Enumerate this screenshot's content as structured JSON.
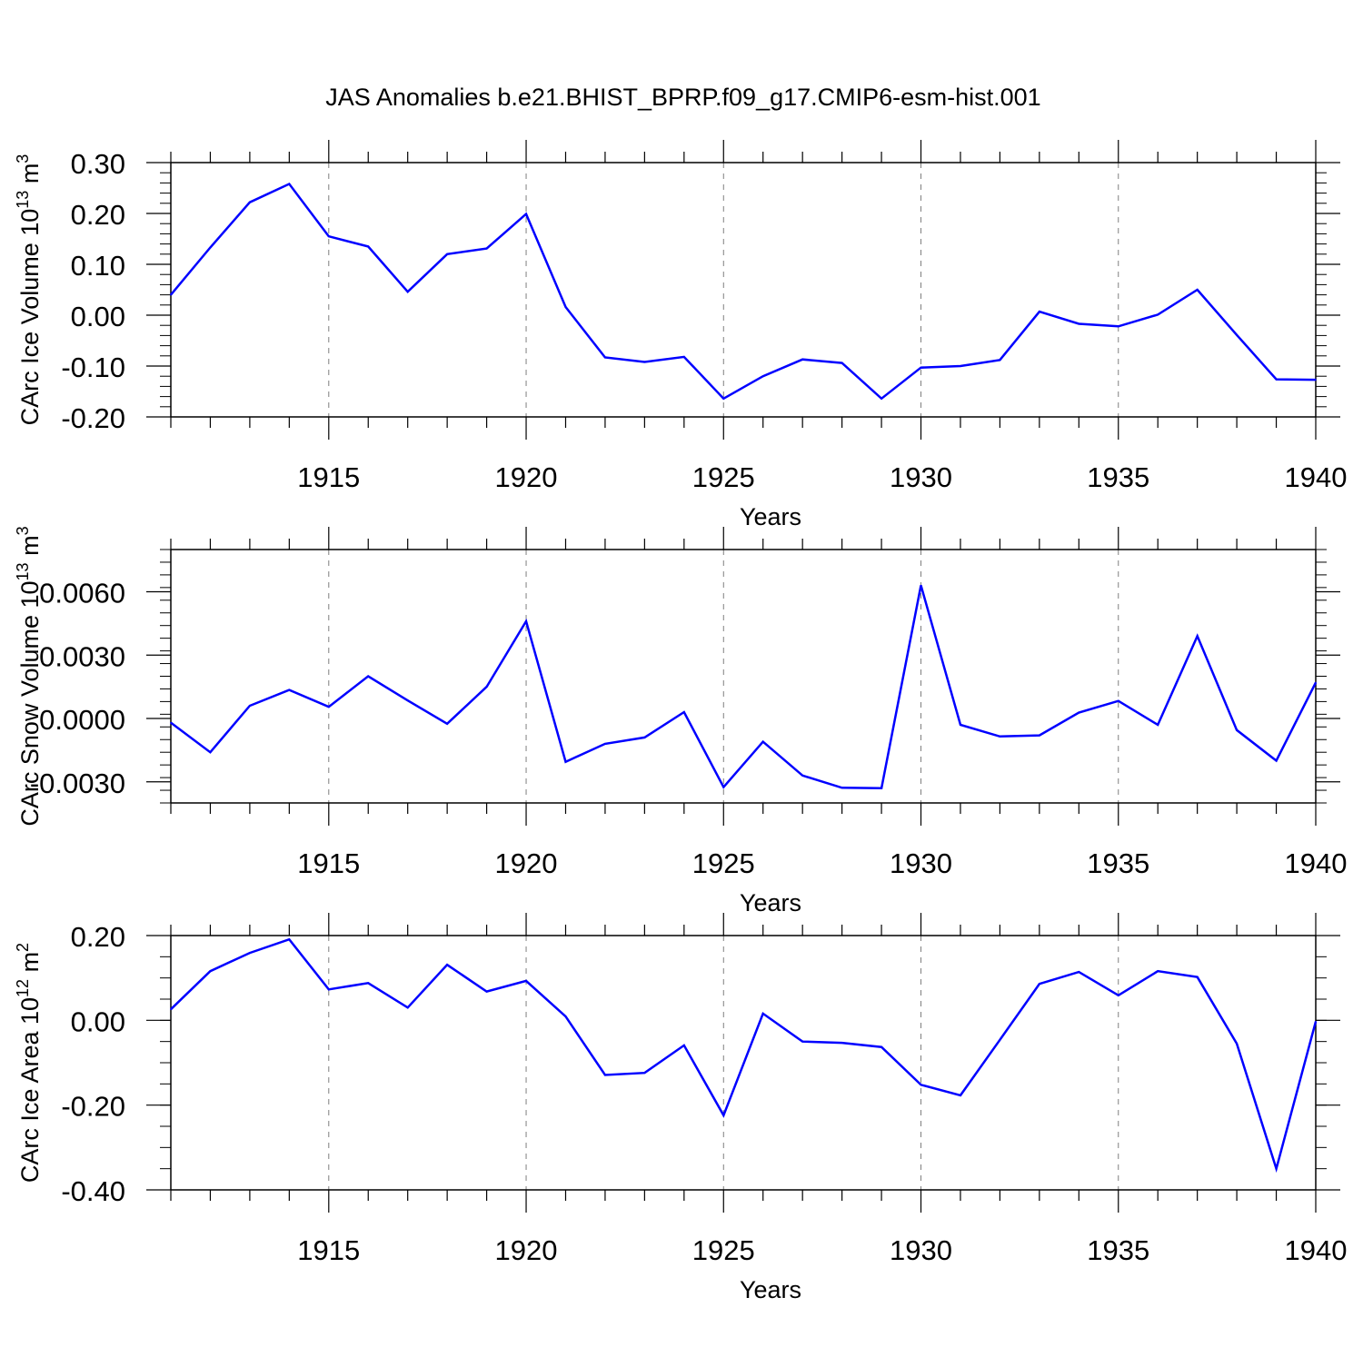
{
  "title": "JAS Anomalies b.e21.BHIST_BPRP.f09_g17.CMIP6-esm-hist.001",
  "colors": {
    "line": "#0000ff",
    "axis": "#000000",
    "grid": "#7f7f7f"
  },
  "chart_data": [
    {
      "type": "line",
      "title": "JAS Anomalies b.e21.BHIST_BPRP.f09_g17.CMIP6-esm-hist.001",
      "ylabel_main": "CArc Ice Volume 10",
      "ylabel_sup": "13",
      "ylabel_tail": " m",
      "ylabel_sup2": "3",
      "xlabel": "Years",
      "xlim": [
        1911,
        1940
      ],
      "ylim": [
        -0.2,
        0.3
      ],
      "yticks": [
        -0.2,
        -0.1,
        0.0,
        0.1,
        0.2,
        0.3
      ],
      "ytick_labels": [
        "-0.20",
        "-0.10",
        "0.00",
        "0.10",
        "0.20",
        "0.30"
      ],
      "yminor_step": 0.02,
      "xticks": [
        1915,
        1920,
        1925,
        1930,
        1935,
        1940
      ],
      "xtick_labels": [
        "1915",
        "1920",
        "1925",
        "1930",
        "1935",
        "1940"
      ],
      "x": [
        1911,
        1912,
        1913,
        1914,
        1915,
        1916,
        1917,
        1918,
        1919,
        1920,
        1921,
        1922,
        1923,
        1924,
        1925,
        1926,
        1927,
        1928,
        1929,
        1930,
        1931,
        1932,
        1933,
        1934,
        1935,
        1936,
        1937,
        1938,
        1939,
        1940
      ],
      "values": [
        0.04,
        0.133,
        0.222,
        0.258,
        0.155,
        0.135,
        0.046,
        0.12,
        0.131,
        0.199,
        0.016,
        -0.083,
        -0.092,
        -0.082,
        -0.164,
        -0.12,
        -0.087,
        -0.094,
        -0.164,
        -0.103,
        -0.1,
        -0.088,
        0.007,
        -0.017,
        -0.022,
        0.001,
        0.05,
        -0.039,
        -0.126,
        -0.127
      ]
    },
    {
      "type": "line",
      "ylabel_main": "CArc Snow Volume 10",
      "ylabel_sup": "13",
      "ylabel_tail": " m",
      "ylabel_sup2": "3",
      "xlabel": "Years",
      "xlim": [
        1911,
        1940
      ],
      "ylim": [
        -0.004,
        0.008
      ],
      "yticks": [
        -0.003,
        0.0,
        0.003,
        0.006
      ],
      "ytick_labels": [
        "-0.0030",
        "0.0000",
        "0.0030",
        "0.0060"
      ],
      "yminor_step": 0.0006,
      "xticks": [
        1915,
        1920,
        1925,
        1930,
        1935,
        1940
      ],
      "xtick_labels": [
        "1915",
        "1920",
        "1925",
        "1930",
        "1935",
        "1940"
      ],
      "x": [
        1911,
        1912,
        1913,
        1914,
        1915,
        1916,
        1917,
        1918,
        1919,
        1920,
        1921,
        1922,
        1923,
        1924,
        1925,
        1926,
        1927,
        1928,
        1929,
        1930,
        1931,
        1932,
        1933,
        1934,
        1935,
        1936,
        1937,
        1938,
        1939,
        1940
      ],
      "values": [
        -0.0002,
        -0.0016,
        0.0006,
        0.00135,
        0.00055,
        0.002,
        0.00085,
        -0.00025,
        0.0015,
        0.0046,
        -0.00205,
        -0.0012,
        -0.0009,
        0.0003,
        -0.00325,
        -0.0011,
        -0.0027,
        -0.00328,
        -0.0033,
        0.0063,
        -0.0003,
        -0.00085,
        -0.0008,
        0.00028,
        0.00083,
        -0.0003,
        0.0039,
        -0.00055,
        -0.002,
        0.0017
      ]
    },
    {
      "type": "line",
      "ylabel_main": "CArc Ice Area 10",
      "ylabel_sup": "12",
      "ylabel_tail": " m",
      "ylabel_sup2": "2",
      "xlabel": "Years",
      "xlim": [
        1911,
        1940
      ],
      "ylim": [
        -0.4,
        0.2
      ],
      "yticks": [
        -0.4,
        -0.2,
        0.0,
        0.2
      ],
      "ytick_labels": [
        "-0.40",
        "-0.20",
        "0.00",
        "0.20"
      ],
      "yminor_step": 0.05,
      "xticks": [
        1915,
        1920,
        1925,
        1930,
        1935,
        1940
      ],
      "xtick_labels": [
        "1915",
        "1920",
        "1925",
        "1930",
        "1935",
        "1940"
      ],
      "x": [
        1911,
        1912,
        1913,
        1914,
        1915,
        1916,
        1917,
        1918,
        1919,
        1920,
        1921,
        1922,
        1923,
        1924,
        1925,
        1926,
        1927,
        1928,
        1929,
        1930,
        1931,
        1932,
        1933,
        1934,
        1935,
        1936,
        1937,
        1938,
        1939,
        1940
      ],
      "values": [
        0.026,
        0.116,
        0.159,
        0.191,
        0.073,
        0.088,
        0.03,
        0.131,
        0.068,
        0.093,
        0.009,
        -0.129,
        -0.124,
        -0.059,
        -0.224,
        0.016,
        -0.05,
        -0.053,
        -0.063,
        -0.152,
        -0.177,
        -0.046,
        0.086,
        0.114,
        0.059,
        0.116,
        0.102,
        -0.055,
        -0.35,
        -0.003
      ]
    }
  ]
}
